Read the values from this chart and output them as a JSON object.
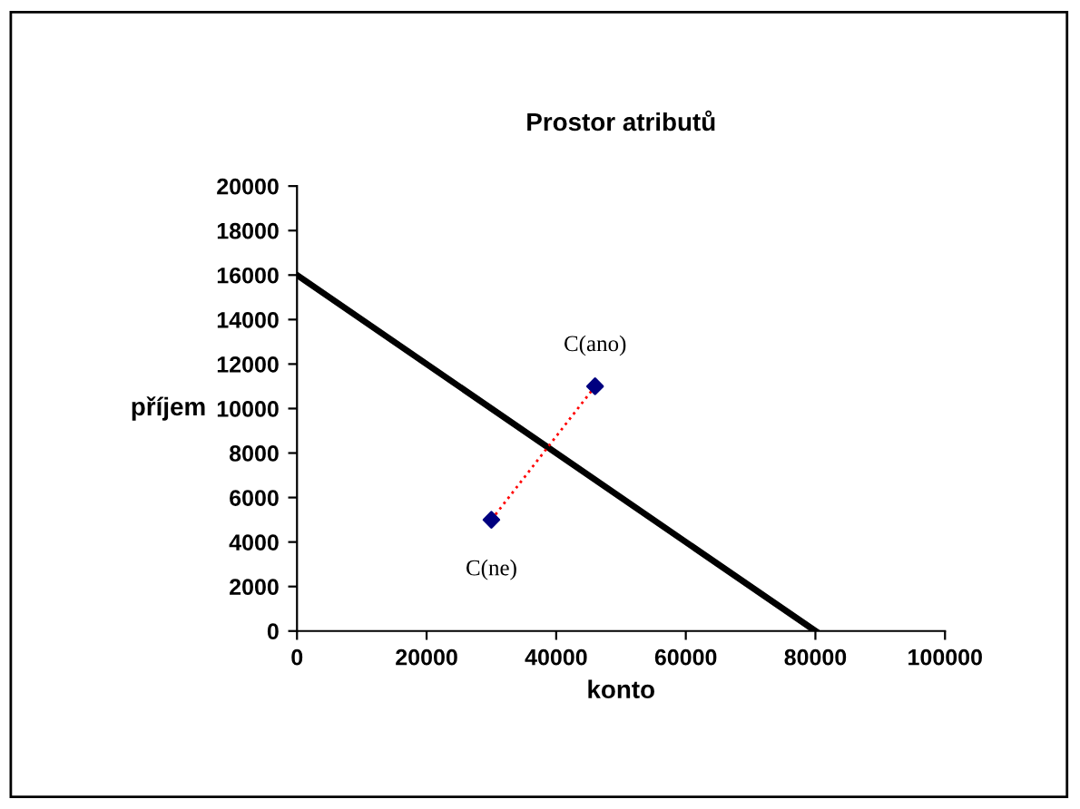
{
  "chart_data": {
    "type": "line",
    "title": "Prostor atributů",
    "xlabel": "konto",
    "ylabel": "příjem",
    "xlim": [
      0,
      100000
    ],
    "xticks": [
      0,
      20000,
      40000,
      60000,
      80000,
      100000
    ],
    "ylim": [
      0,
      20000
    ],
    "yticks": [
      0,
      2000,
      4000,
      6000,
      8000,
      10000,
      12000,
      14000,
      16000,
      18000,
      20000
    ],
    "grid": false,
    "legend": false,
    "series": [
      {
        "x": [
          0,
          80000
        ],
        "values": [
          16000,
          0
        ],
        "color": "#000000",
        "line_style": "solid",
        "marker": "none"
      },
      {
        "type": "line",
        "x": [
          30000,
          46000
        ],
        "values": [
          5000,
          11000
        ],
        "color": "#ff0000",
        "line_style": "dotted",
        "marker": "none"
      },
      {
        "type": "scatter",
        "x": [
          30000,
          46000
        ],
        "values": [
          5000,
          11000
        ],
        "color": "#000080",
        "marker": "diamond"
      }
    ],
    "annotations": [
      {
        "text": "C(ne)",
        "x": 30000,
        "y": 5000
      },
      {
        "text": "C(ano)",
        "x": 46000,
        "y": 11000
      }
    ]
  }
}
